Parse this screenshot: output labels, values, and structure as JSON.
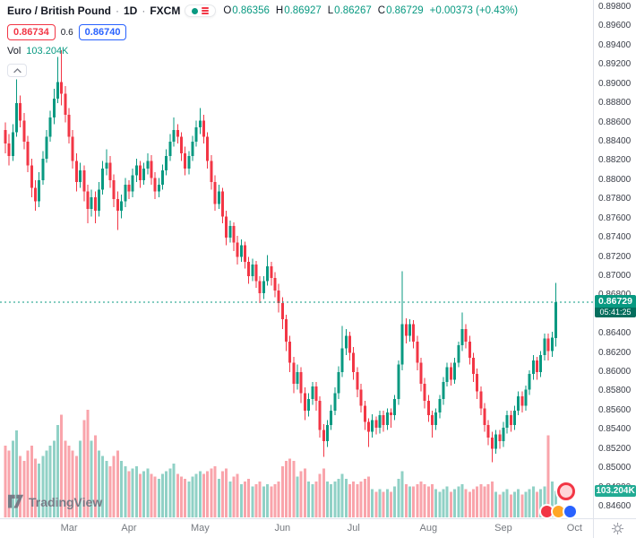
{
  "header": {
    "symbol_title": "Euro / British Pound",
    "separator": "·",
    "timeframe": "1D",
    "exchange": "FXCM",
    "ohlc": [
      {
        "label": "O",
        "value": "0.86356"
      },
      {
        "label": "H",
        "value": "0.86927"
      },
      {
        "label": "L",
        "value": "0.86267"
      },
      {
        "label": "C",
        "value": "0.86729"
      }
    ],
    "change": "+0.00373 (+0.43%)",
    "bid": "0.86734",
    "spread": "0.6",
    "ask": "0.86740",
    "volume_label": "Vol",
    "volume_value": "103.204K"
  },
  "price_scale": {
    "last_price_label": "0.86729",
    "countdown": "05:41:25",
    "volume_badge": "103.204K"
  },
  "footer": {
    "logo_text": "TradingView"
  },
  "colors": {
    "up": "#089981",
    "down": "#F23645",
    "bid": "#F23645",
    "ask": "#2962FF",
    "last_price_line": "#089981"
  },
  "chart_data": {
    "type": "candlestick",
    "title": "Euro / British Pound · 1D · FXCM",
    "interval": "1D",
    "legend_position": "top-left",
    "grid": false,
    "up_color": "#089981",
    "down_color": "#F23645",
    "last_price": 0.86729,
    "y_axis": {
      "min": 0.846,
      "max": 0.898,
      "tick_step": 0.002,
      "ticks": [
        0.898,
        0.896,
        0.894,
        0.892,
        0.89,
        0.888,
        0.886,
        0.884,
        0.882,
        0.88,
        0.878,
        0.876,
        0.874,
        0.872,
        0.87,
        0.868,
        0.866,
        0.864,
        0.862,
        0.86,
        0.858,
        0.856,
        0.854,
        0.852,
        0.85,
        0.848,
        0.846
      ]
    },
    "volume_axis": {
      "max": 420,
      "unit": "K",
      "last": 103.204
    },
    "x_labels": [
      {
        "label": "Mar",
        "i": 17
      },
      {
        "label": "Apr",
        "i": 33
      },
      {
        "label": "May",
        "i": 52
      },
      {
        "label": "Jun",
        "i": 74
      },
      {
        "label": "Jul",
        "i": 93
      },
      {
        "label": "Aug",
        "i": 113
      },
      {
        "label": "Sep",
        "i": 133
      },
      {
        "label": "Oct",
        "i": 152
      }
    ],
    "candles_format": [
      "open",
      "high",
      "low",
      "close",
      "volume_K"
    ],
    "candles": [
      [
        0.8852,
        0.886,
        0.8828,
        0.8838,
        280
      ],
      [
        0.8838,
        0.8848,
        0.8815,
        0.8825,
        260
      ],
      [
        0.8825,
        0.8858,
        0.882,
        0.885,
        300
      ],
      [
        0.885,
        0.8905,
        0.8845,
        0.888,
        340
      ],
      [
        0.888,
        0.8888,
        0.8855,
        0.8862,
        240
      ],
      [
        0.8862,
        0.887,
        0.8832,
        0.884,
        220
      ],
      [
        0.884,
        0.8846,
        0.8808,
        0.8815,
        260
      ],
      [
        0.8815,
        0.8822,
        0.8782,
        0.8792,
        280
      ],
      [
        0.8792,
        0.88,
        0.8768,
        0.8778,
        230
      ],
      [
        0.8778,
        0.8808,
        0.8772,
        0.88,
        210
      ],
      [
        0.88,
        0.883,
        0.8795,
        0.8822,
        240
      ],
      [
        0.8822,
        0.8852,
        0.8818,
        0.8845,
        260
      ],
      [
        0.8845,
        0.8872,
        0.884,
        0.8865,
        280
      ],
      [
        0.8865,
        0.8895,
        0.8858,
        0.8885,
        300
      ],
      [
        0.8885,
        0.8928,
        0.888,
        0.8902,
        360
      ],
      [
        0.8902,
        0.8935,
        0.8878,
        0.889,
        400
      ],
      [
        0.889,
        0.8898,
        0.886,
        0.8868,
        300
      ],
      [
        0.8868,
        0.8875,
        0.8838,
        0.8845,
        280
      ],
      [
        0.8845,
        0.8852,
        0.8812,
        0.882,
        260
      ],
      [
        0.882,
        0.8828,
        0.8788,
        0.8798,
        240
      ],
      [
        0.8798,
        0.8818,
        0.8792,
        0.881,
        300
      ],
      [
        0.881,
        0.8815,
        0.8778,
        0.8788,
        380
      ],
      [
        0.8788,
        0.8795,
        0.8755,
        0.877,
        420
      ],
      [
        0.877,
        0.879,
        0.8762,
        0.8782,
        300
      ],
      [
        0.8782,
        0.8788,
        0.8755,
        0.8768,
        320
      ],
      [
        0.8768,
        0.8798,
        0.8762,
        0.879,
        260
      ],
      [
        0.879,
        0.882,
        0.8785,
        0.8812,
        240
      ],
      [
        0.8812,
        0.8832,
        0.8805,
        0.8818,
        220
      ],
      [
        0.8818,
        0.8825,
        0.8792,
        0.88,
        200
      ],
      [
        0.88,
        0.8806,
        0.8772,
        0.878,
        240
      ],
      [
        0.878,
        0.8788,
        0.8748,
        0.8768,
        260
      ],
      [
        0.8768,
        0.8785,
        0.876,
        0.8778,
        220
      ],
      [
        0.8778,
        0.8802,
        0.8772,
        0.8795,
        200
      ],
      [
        0.8795,
        0.88,
        0.878,
        0.8788,
        180
      ],
      [
        0.8788,
        0.8812,
        0.8782,
        0.8805,
        190
      ],
      [
        0.8805,
        0.8822,
        0.8798,
        0.8815,
        200
      ],
      [
        0.8815,
        0.882,
        0.8792,
        0.88,
        170
      ],
      [
        0.88,
        0.8818,
        0.8795,
        0.8812,
        180
      ],
      [
        0.8812,
        0.8828,
        0.8806,
        0.882,
        190
      ],
      [
        0.882,
        0.8826,
        0.8795,
        0.8802,
        170
      ],
      [
        0.8802,
        0.8808,
        0.878,
        0.8788,
        160
      ],
      [
        0.8788,
        0.8802,
        0.8782,
        0.8795,
        150
      ],
      [
        0.8795,
        0.8816,
        0.879,
        0.881,
        170
      ],
      [
        0.881,
        0.8832,
        0.8805,
        0.8825,
        180
      ],
      [
        0.8825,
        0.8848,
        0.882,
        0.884,
        190
      ],
      [
        0.884,
        0.8865,
        0.8835,
        0.8852,
        210
      ],
      [
        0.8852,
        0.8858,
        0.8838,
        0.8845,
        170
      ],
      [
        0.8845,
        0.885,
        0.882,
        0.8828,
        160
      ],
      [
        0.8828,
        0.8835,
        0.8805,
        0.8812,
        150
      ],
      [
        0.8812,
        0.883,
        0.8806,
        0.8825,
        140
      ],
      [
        0.8825,
        0.8846,
        0.882,
        0.884,
        160
      ],
      [
        0.884,
        0.8862,
        0.8835,
        0.8855,
        170
      ],
      [
        0.8855,
        0.8875,
        0.8848,
        0.8862,
        180
      ],
      [
        0.8862,
        0.8868,
        0.8838,
        0.8845,
        170
      ],
      [
        0.8845,
        0.885,
        0.8812,
        0.882,
        180
      ],
      [
        0.882,
        0.8826,
        0.879,
        0.8798,
        190
      ],
      [
        0.8798,
        0.8805,
        0.8768,
        0.8775,
        200
      ],
      [
        0.8775,
        0.8795,
        0.877,
        0.8788,
        150
      ],
      [
        0.8788,
        0.8792,
        0.8755,
        0.8762,
        180
      ],
      [
        0.8762,
        0.8768,
        0.8732,
        0.874,
        190
      ],
      [
        0.874,
        0.8758,
        0.8735,
        0.8752,
        140
      ],
      [
        0.8752,
        0.8756,
        0.8726,
        0.8735,
        160
      ],
      [
        0.8735,
        0.8742,
        0.8712,
        0.872,
        170
      ],
      [
        0.872,
        0.8738,
        0.8715,
        0.8732,
        130
      ],
      [
        0.8732,
        0.8736,
        0.8708,
        0.8715,
        140
      ],
      [
        0.8715,
        0.872,
        0.8692,
        0.87,
        150
      ],
      [
        0.87,
        0.8718,
        0.8695,
        0.8712,
        120
      ],
      [
        0.8712,
        0.8716,
        0.8688,
        0.8695,
        130
      ],
      [
        0.8695,
        0.87,
        0.8672,
        0.8682,
        140
      ],
      [
        0.8682,
        0.87,
        0.8676,
        0.8695,
        120
      ],
      [
        0.8695,
        0.8722,
        0.869,
        0.871,
        130
      ],
      [
        0.871,
        0.8715,
        0.869,
        0.8698,
        120
      ],
      [
        0.8698,
        0.8704,
        0.8678,
        0.8685,
        130
      ],
      [
        0.8685,
        0.8692,
        0.8662,
        0.8672,
        140
      ],
      [
        0.8672,
        0.8678,
        0.8645,
        0.8655,
        200
      ],
      [
        0.8655,
        0.866,
        0.8622,
        0.8632,
        220
      ],
      [
        0.8632,
        0.8638,
        0.86,
        0.861,
        230
      ],
      [
        0.861,
        0.8616,
        0.8578,
        0.8588,
        220
      ],
      [
        0.8588,
        0.8608,
        0.8582,
        0.86,
        160
      ],
      [
        0.86,
        0.8605,
        0.8568,
        0.8578,
        180
      ],
      [
        0.8578,
        0.8584,
        0.855,
        0.856,
        190
      ],
      [
        0.856,
        0.8578,
        0.8554,
        0.8572,
        140
      ],
      [
        0.8572,
        0.859,
        0.8566,
        0.8585,
        130
      ],
      [
        0.8585,
        0.859,
        0.856,
        0.857,
        140
      ],
      [
        0.857,
        0.8575,
        0.8532,
        0.854,
        170
      ],
      [
        0.854,
        0.8546,
        0.8512,
        0.8528,
        190
      ],
      [
        0.8528,
        0.855,
        0.8522,
        0.8545,
        140
      ],
      [
        0.8545,
        0.8566,
        0.854,
        0.856,
        130
      ],
      [
        0.856,
        0.8584,
        0.8555,
        0.8578,
        140
      ],
      [
        0.8578,
        0.8606,
        0.8572,
        0.86,
        150
      ],
      [
        0.86,
        0.8648,
        0.8595,
        0.8625,
        170
      ],
      [
        0.8625,
        0.8645,
        0.8618,
        0.8638,
        150
      ],
      [
        0.8638,
        0.8642,
        0.8612,
        0.862,
        130
      ],
      [
        0.862,
        0.8626,
        0.8592,
        0.86,
        140
      ],
      [
        0.86,
        0.8605,
        0.8574,
        0.8582,
        130
      ],
      [
        0.8582,
        0.8588,
        0.8558,
        0.8565,
        140
      ],
      [
        0.8565,
        0.857,
        0.854,
        0.8548,
        150
      ],
      [
        0.8548,
        0.8552,
        0.8522,
        0.8538,
        160
      ],
      [
        0.8538,
        0.8556,
        0.8532,
        0.855,
        110
      ],
      [
        0.855,
        0.8554,
        0.8535,
        0.8542,
        100
      ],
      [
        0.8542,
        0.856,
        0.8536,
        0.8555,
        110
      ],
      [
        0.8555,
        0.856,
        0.8538,
        0.8545,
        100
      ],
      [
        0.8545,
        0.8562,
        0.854,
        0.8558,
        110
      ],
      [
        0.8558,
        0.8562,
        0.8542,
        0.8555,
        100
      ],
      [
        0.8555,
        0.8576,
        0.855,
        0.8572,
        120
      ],
      [
        0.8572,
        0.8612,
        0.8566,
        0.8608,
        150
      ],
      [
        0.8608,
        0.8705,
        0.8602,
        0.865,
        180
      ],
      [
        0.865,
        0.8656,
        0.863,
        0.8638,
        130
      ],
      [
        0.8638,
        0.8655,
        0.8632,
        0.865,
        120
      ],
      [
        0.865,
        0.8654,
        0.8625,
        0.8632,
        120
      ],
      [
        0.8632,
        0.8638,
        0.8602,
        0.861,
        130
      ],
      [
        0.861,
        0.8615,
        0.858,
        0.8588,
        140
      ],
      [
        0.8588,
        0.8594,
        0.8562,
        0.857,
        130
      ],
      [
        0.857,
        0.8576,
        0.8548,
        0.8555,
        120
      ],
      [
        0.8555,
        0.856,
        0.8532,
        0.8545,
        130
      ],
      [
        0.8545,
        0.8562,
        0.854,
        0.8558,
        110
      ],
      [
        0.8558,
        0.8576,
        0.8552,
        0.8572,
        100
      ],
      [
        0.8572,
        0.8595,
        0.8566,
        0.859,
        110
      ],
      [
        0.859,
        0.861,
        0.8585,
        0.8605,
        120
      ],
      [
        0.8605,
        0.861,
        0.8586,
        0.8592,
        100
      ],
      [
        0.8592,
        0.8615,
        0.8588,
        0.861,
        110
      ],
      [
        0.861,
        0.8632,
        0.8605,
        0.8628,
        120
      ],
      [
        0.8628,
        0.8662,
        0.8622,
        0.8645,
        130
      ],
      [
        0.8645,
        0.865,
        0.8625,
        0.8632,
        110
      ],
      [
        0.8632,
        0.8638,
        0.8608,
        0.8615,
        100
      ],
      [
        0.8615,
        0.862,
        0.859,
        0.8598,
        110
      ],
      [
        0.8598,
        0.8604,
        0.8572,
        0.858,
        120
      ],
      [
        0.858,
        0.8585,
        0.8555,
        0.8562,
        130
      ],
      [
        0.8562,
        0.8568,
        0.8538,
        0.8545,
        120
      ],
      [
        0.8545,
        0.855,
        0.8524,
        0.8532,
        130
      ],
      [
        0.8532,
        0.8538,
        0.8506,
        0.852,
        140
      ],
      [
        0.852,
        0.854,
        0.8515,
        0.8535,
        100
      ],
      [
        0.8535,
        0.854,
        0.852,
        0.8528,
        90
      ],
      [
        0.8528,
        0.8548,
        0.8522,
        0.8542,
        100
      ],
      [
        0.8542,
        0.856,
        0.8536,
        0.8555,
        110
      ],
      [
        0.8555,
        0.856,
        0.8538,
        0.8545,
        90
      ],
      [
        0.8545,
        0.8565,
        0.854,
        0.856,
        100
      ],
      [
        0.856,
        0.858,
        0.8555,
        0.8575,
        110
      ],
      [
        0.8575,
        0.858,
        0.8558,
        0.8565,
        90
      ],
      [
        0.8565,
        0.8586,
        0.856,
        0.8582,
        100
      ],
      [
        0.8582,
        0.8602,
        0.8576,
        0.8598,
        110
      ],
      [
        0.8598,
        0.8618,
        0.8592,
        0.8612,
        120
      ],
      [
        0.8612,
        0.8616,
        0.8592,
        0.86,
        100
      ],
      [
        0.86,
        0.8622,
        0.8595,
        0.8618,
        110
      ],
      [
        0.8618,
        0.864,
        0.8612,
        0.8635,
        120
      ],
      [
        0.8635,
        0.864,
        0.8612,
        0.8622,
        320
      ],
      [
        0.8622,
        0.8642,
        0.8616,
        0.8636,
        140
      ],
      [
        0.86356,
        0.86927,
        0.86267,
        0.86729,
        103.2
      ]
    ]
  }
}
